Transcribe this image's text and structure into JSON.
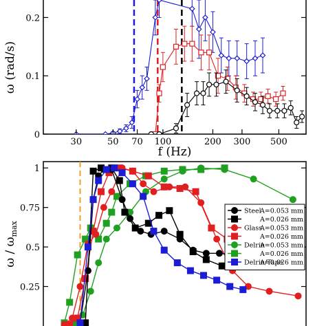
{
  "chart_data": [
    {
      "type": "line",
      "xscale": "log",
      "xlabel": "f (Hz)",
      "ylabel": "ω (rad/s)",
      "xlim": [
        19,
        730
      ],
      "ylim": [
        0,
        0.23
      ],
      "xticks": [
        {
          "value": 30,
          "label": "30"
        },
        {
          "value": 50,
          "label": "50"
        },
        {
          "value": 70,
          "label": "70"
        },
        {
          "value": 100,
          "label": "100"
        },
        {
          "value": 200,
          "label": "200"
        },
        {
          "value": 300,
          "label": "300"
        },
        {
          "value": 500,
          "label": "500"
        }
      ],
      "yticks": [
        {
          "value": 0,
          "label": "0"
        },
        {
          "value": 0.1,
          "label": "0.1"
        },
        {
          "value": 0.2,
          "label": "0.2"
        }
      ],
      "thresholds": [
        {
          "x": 67,
          "color": "#1c1cd4"
        },
        {
          "x": 93,
          "color": "#e02020"
        },
        {
          "x": 130,
          "color": "#000000"
        }
      ],
      "series": [
        {
          "color": "#1c1cd4",
          "marker": "diamond",
          "points": [
            {
              "x": 30,
              "y": 0.0,
              "err": 0.001
            },
            {
              "x": 45,
              "y": 0.0,
              "err": 0.001
            },
            {
              "x": 50,
              "y": 0.002,
              "err": 0.002
            },
            {
              "x": 55,
              "y": 0.005,
              "err": 0.004
            },
            {
              "x": 60,
              "y": 0.01,
              "err": 0.006
            },
            {
              "x": 65,
              "y": 0.02,
              "err": 0.01
            },
            {
              "x": 70,
              "y": 0.06,
              "err": 0.015
            },
            {
              "x": 75,
              "y": 0.08,
              "err": 0.02
            },
            {
              "x": 80,
              "y": 0.095,
              "err": 0.02
            },
            {
              "x": 90,
              "y": 0.2,
              "err": 0.03
            },
            {
              "x": 95,
              "y": 0.23,
              "err": 0.03
            },
            {
              "x": 150,
              "y": 0.215,
              "err": 0.03
            },
            {
              "x": 165,
              "y": 0.18,
              "err": 0.05
            },
            {
              "x": 180,
              "y": 0.2,
              "err": 0.04
            },
            {
              "x": 200,
              "y": 0.175,
              "err": 0.035
            },
            {
              "x": 225,
              "y": 0.135,
              "err": 0.03
            },
            {
              "x": 250,
              "y": 0.13,
              "err": 0.03
            },
            {
              "x": 280,
              "y": 0.13,
              "err": 0.03
            },
            {
              "x": 320,
              "y": 0.125,
              "err": 0.03
            },
            {
              "x": 360,
              "y": 0.13,
              "err": 0.03
            },
            {
              "x": 400,
              "y": 0.135,
              "err": 0.03
            }
          ]
        },
        {
          "color": "#e02020",
          "marker": "square",
          "points": [
            {
              "x": 90,
              "y": 0.0,
              "err": 0.003
            },
            {
              "x": 95,
              "y": 0.07,
              "err": 0.015
            },
            {
              "x": 100,
              "y": 0.115,
              "err": 0.025
            },
            {
              "x": 120,
              "y": 0.15,
              "err": 0.03
            },
            {
              "x": 135,
              "y": 0.155,
              "err": 0.03
            },
            {
              "x": 150,
              "y": 0.155,
              "err": 0.03
            },
            {
              "x": 170,
              "y": 0.14,
              "err": 0.03
            },
            {
              "x": 190,
              "y": 0.14,
              "err": 0.03
            },
            {
              "x": 215,
              "y": 0.1,
              "err": 0.03
            },
            {
              "x": 245,
              "y": 0.095,
              "err": 0.02
            },
            {
              "x": 275,
              "y": 0.08,
              "err": 0.02
            },
            {
              "x": 310,
              "y": 0.07,
              "err": 0.015
            },
            {
              "x": 350,
              "y": 0.06,
              "err": 0.012
            },
            {
              "x": 390,
              "y": 0.06,
              "err": 0.012
            },
            {
              "x": 430,
              "y": 0.065,
              "err": 0.012
            },
            {
              "x": 480,
              "y": 0.06,
              "err": 0.012
            },
            {
              "x": 530,
              "y": 0.07,
              "err": 0.012
            }
          ]
        },
        {
          "color": "#000000",
          "marker": "circle",
          "points": [
            {
              "x": 85,
              "y": 0.0,
              "err": 0.002
            },
            {
              "x": 95,
              "y": 0.0,
              "err": 0.003
            },
            {
              "x": 120,
              "y": 0.01,
              "err": 0.008
            },
            {
              "x": 140,
              "y": 0.05,
              "err": 0.02
            },
            {
              "x": 160,
              "y": 0.07,
              "err": 0.02
            },
            {
              "x": 175,
              "y": 0.07,
              "err": 0.02
            },
            {
              "x": 190,
              "y": 0.085,
              "err": 0.02
            },
            {
              "x": 210,
              "y": 0.085,
              "err": 0.02
            },
            {
              "x": 240,
              "y": 0.09,
              "err": 0.02
            },
            {
              "x": 280,
              "y": 0.075,
              "err": 0.02
            },
            {
              "x": 320,
              "y": 0.065,
              "err": 0.015
            },
            {
              "x": 360,
              "y": 0.055,
              "err": 0.015
            },
            {
              "x": 400,
              "y": 0.05,
              "err": 0.015
            },
            {
              "x": 440,
              "y": 0.04,
              "err": 0.012
            },
            {
              "x": 490,
              "y": 0.04,
              "err": 0.012
            },
            {
              "x": 540,
              "y": 0.04,
              "err": 0.012
            },
            {
              "x": 590,
              "y": 0.045,
              "err": 0.012
            },
            {
              "x": 640,
              "y": 0.02,
              "err": 0.01
            },
            {
              "x": 690,
              "y": 0.03,
              "err": 0.01
            }
          ]
        }
      ]
    },
    {
      "type": "line",
      "ylabel_main": "ω / ω",
      "ylabel_sub": "max",
      "xlim": [
        0,
        100
      ],
      "ylim": [
        0,
        1.04
      ],
      "yticks": [
        {
          "value": 0.25,
          "label": "0.25"
        },
        {
          "value": 0.5,
          "label": "0.5"
        },
        {
          "value": 0.75,
          "label": "0.75"
        },
        {
          "value": 1,
          "label": "1"
        }
      ],
      "threshold": {
        "x": 14,
        "color": "#f0a020"
      },
      "legend": {
        "placement": "right",
        "entries": [
          {
            "material": "Steel",
            "amplitude": "A=0.053 mm",
            "color": "#000000",
            "marker": "circle"
          },
          {
            "material": "",
            "amplitude": "A=0.026 mm",
            "color": "#000000",
            "marker": "square"
          },
          {
            "material": "Glass",
            "amplitude": "A=0.053 mm",
            "color": "#e02020",
            "marker": "circle"
          },
          {
            "material": "",
            "amplitude": "A=0.026 mm",
            "color": "#e02020",
            "marker": "square"
          },
          {
            "material": "Delrin",
            "amplitude": "A=0.053 mm",
            "color": "#20a020",
            "marker": "circle"
          },
          {
            "material": "",
            "amplitude": "A=0.026 mm",
            "color": "#20a020",
            "marker": "square"
          },
          {
            "material": "Delrin/Tape",
            "amplitude": "A=0.026 mm",
            "color": "#1c1cd4",
            "marker": "square"
          }
        ]
      },
      "series": [
        {
          "color": "#20a020",
          "marker": "circle",
          "points": [
            {
              "x": 12,
              "y": 0.02
            },
            {
              "x": 15,
              "y": 0.07
            },
            {
              "x": 18,
              "y": 0.22
            },
            {
              "x": 21,
              "y": 0.4
            },
            {
              "x": 24,
              "y": 0.55
            },
            {
              "x": 28,
              "y": 0.62
            },
            {
              "x": 33,
              "y": 0.72
            },
            {
              "x": 39,
              "y": 0.85
            },
            {
              "x": 46,
              "y": 0.93
            },
            {
              "x": 53,
              "y": 0.98
            },
            {
              "x": 60,
              "y": 1.0
            },
            {
              "x": 69,
              "y": 0.99
            },
            {
              "x": 80,
              "y": 0.93
            },
            {
              "x": 95,
              "y": 0.8
            }
          ]
        },
        {
          "color": "#20a020",
          "marker": "square",
          "points": [
            {
              "x": 8,
              "y": 0.02
            },
            {
              "x": 10,
              "y": 0.15
            },
            {
              "x": 13,
              "y": 0.45
            },
            {
              "x": 16,
              "y": 0.55
            },
            {
              "x": 18,
              "y": 0.62
            },
            {
              "x": 21,
              "y": 0.55
            },
            {
              "x": 24,
              "y": 0.65
            },
            {
              "x": 26,
              "y": 0.72
            },
            {
              "x": 28,
              "y": 0.82
            },
            {
              "x": 33,
              "y": 0.9
            },
            {
              "x": 39,
              "y": 0.95
            },
            {
              "x": 46,
              "y": 0.98
            },
            {
              "x": 53,
              "y": 0.99
            },
            {
              "x": 60,
              "y": 0.99
            },
            {
              "x": 69,
              "y": 1.0
            }
          ]
        },
        {
          "color": "#e02020",
          "marker": "circle",
          "points": [
            {
              "x": 8,
              "y": 0.01
            },
            {
              "x": 11,
              "y": 0.05
            },
            {
              "x": 14,
              "y": 0.25
            },
            {
              "x": 17,
              "y": 0.52
            },
            {
              "x": 20,
              "y": 0.58
            },
            {
              "x": 23,
              "y": 0.75
            },
            {
              "x": 26,
              "y": 0.85
            },
            {
              "x": 30,
              "y": 1.0
            },
            {
              "x": 34,
              "y": 0.98
            },
            {
              "x": 38,
              "y": 0.9
            },
            {
              "x": 42,
              "y": 0.85
            },
            {
              "x": 48,
              "y": 0.88
            },
            {
              "x": 54,
              "y": 0.88
            },
            {
              "x": 60,
              "y": 0.78
            },
            {
              "x": 66,
              "y": 0.55
            },
            {
              "x": 72,
              "y": 0.35
            },
            {
              "x": 78,
              "y": 0.25
            },
            {
              "x": 86,
              "y": 0.22
            },
            {
              "x": 97,
              "y": 0.19
            }
          ]
        },
        {
          "color": "#e02020",
          "marker": "square",
          "points": [
            {
              "x": 10,
              "y": 0.01
            },
            {
              "x": 13,
              "y": 0.05
            },
            {
              "x": 16,
              "y": 0.3
            },
            {
              "x": 19,
              "y": 0.6
            },
            {
              "x": 22,
              "y": 0.85
            },
            {
              "x": 25,
              "y": 0.97
            },
            {
              "x": 29,
              "y": 1.0
            },
            {
              "x": 34,
              "y": 0.98
            },
            {
              "x": 40,
              "y": 0.95
            },
            {
              "x": 46,
              "y": 0.88
            },
            {
              "x": 52,
              "y": 0.87
            },
            {
              "x": 58,
              "y": 0.85
            },
            {
              "x": 64,
              "y": 0.62
            },
            {
              "x": 70,
              "y": 0.55
            },
            {
              "x": 76,
              "y": 0.48
            }
          ]
        },
        {
          "color": "#000000",
          "marker": "circle",
          "points": [
            {
              "x": 14,
              "y": 0.02
            },
            {
              "x": 17,
              "y": 0.35
            },
            {
              "x": 19,
              "y": 0.8
            },
            {
              "x": 21,
              "y": 0.95
            },
            {
              "x": 23,
              "y": 0.99
            },
            {
              "x": 26,
              "y": 0.99
            },
            {
              "x": 30,
              "y": 0.8
            },
            {
              "x": 33,
              "y": 0.68
            },
            {
              "x": 37,
              "y": 0.6
            },
            {
              "x": 41,
              "y": 0.58
            },
            {
              "x": 46,
              "y": 0.6
            },
            {
              "x": 52,
              "y": 0.55
            },
            {
              "x": 57,
              "y": 0.48
            },
            {
              "x": 62,
              "y": 0.46
            },
            {
              "x": 67,
              "y": 0.46
            },
            {
              "x": 73,
              "y": 0.45
            },
            {
              "x": 80,
              "y": 0.45
            }
          ]
        },
        {
          "color": "#000000",
          "marker": "square",
          "points": [
            {
              "x": 16,
              "y": 0.02
            },
            {
              "x": 19,
              "y": 0.98
            },
            {
              "x": 22,
              "y": 1.0
            },
            {
              "x": 26,
              "y": 1.0
            },
            {
              "x": 29,
              "y": 0.92
            },
            {
              "x": 31,
              "y": 0.72
            },
            {
              "x": 35,
              "y": 0.62
            },
            {
              "x": 40,
              "y": 0.65
            },
            {
              "x": 44,
              "y": 0.7
            },
            {
              "x": 48,
              "y": 0.73
            },
            {
              "x": 52,
              "y": 0.58
            },
            {
              "x": 57,
              "y": 0.47
            },
            {
              "x": 62,
              "y": 0.42
            },
            {
              "x": 68,
              "y": 0.38
            },
            {
              "x": 74,
              "y": 0.39
            },
            {
              "x": 80,
              "y": 0.39
            }
          ]
        },
        {
          "color": "#1c1cd4",
          "marker": "square",
          "points": [
            {
              "x": 14,
              "y": 0.02
            },
            {
              "x": 17,
              "y": 0.5
            },
            {
              "x": 19,
              "y": 0.8
            },
            {
              "x": 21,
              "y": 0.92
            },
            {
              "x": 24,
              "y": 0.99
            },
            {
              "x": 27,
              "y": 1.0
            },
            {
              "x": 30,
              "y": 0.97
            },
            {
              "x": 34,
              "y": 0.9
            },
            {
              "x": 38,
              "y": 0.82
            },
            {
              "x": 42,
              "y": 0.6
            },
            {
              "x": 46,
              "y": 0.48
            },
            {
              "x": 51,
              "y": 0.4
            },
            {
              "x": 56,
              "y": 0.35
            },
            {
              "x": 61,
              "y": 0.32
            },
            {
              "x": 66,
              "y": 0.29
            },
            {
              "x": 71,
              "y": 0.25
            },
            {
              "x": 76,
              "y": 0.23
            }
          ]
        }
      ]
    }
  ]
}
